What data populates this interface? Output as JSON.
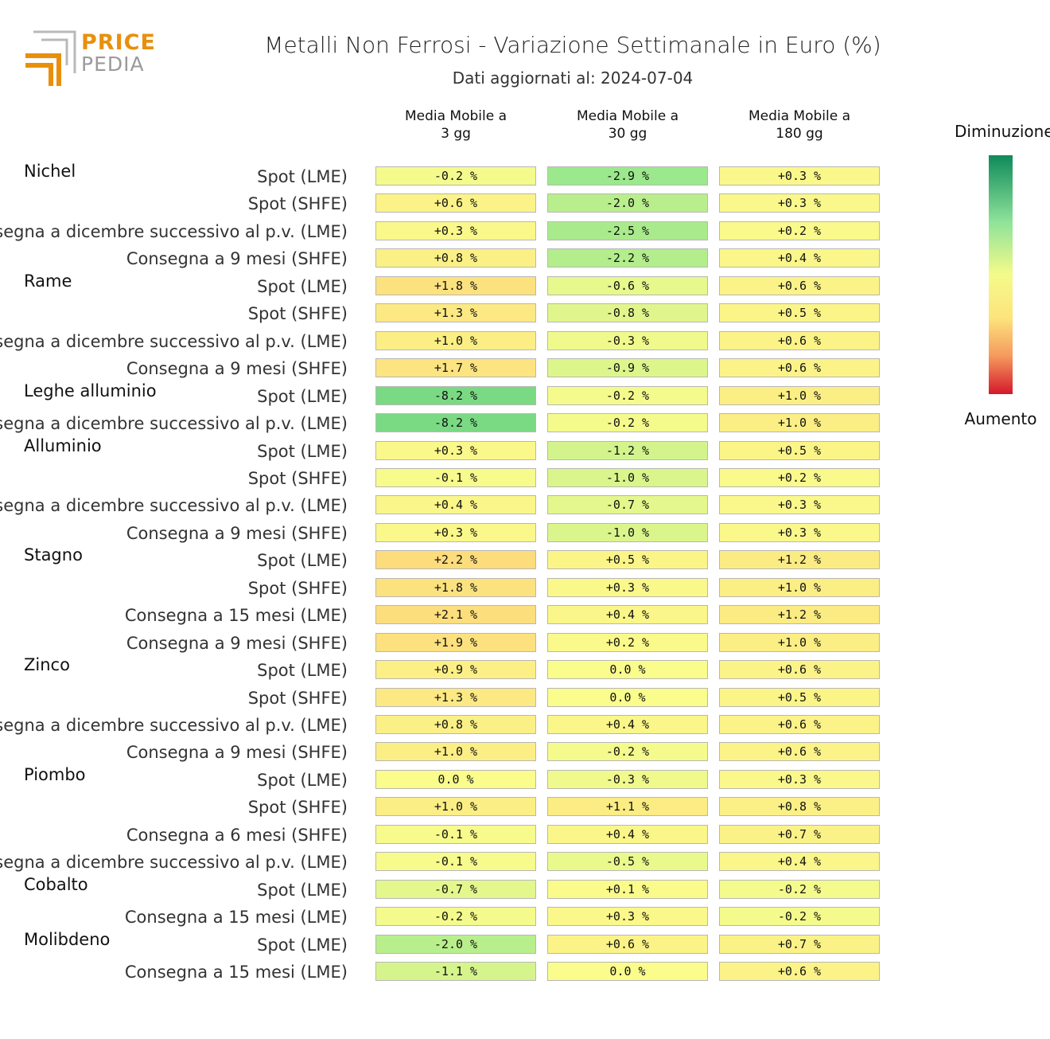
{
  "header": {
    "logo_top": "PRICE",
    "logo_bottom": "PEDIA",
    "title": "Metalli Non Ferrosi - Variazione Settimanale in Euro (%)",
    "subtitle": "Dati aggiornati al: 2024-07-04"
  },
  "columns": [
    "Media Mobile a 3 gg",
    "Media Mobile a 30 gg",
    "Media Mobile a 180 gg"
  ],
  "legend": {
    "top": "Diminuzione",
    "bottom": "Aumento"
  },
  "chart_data": {
    "type": "heatmap",
    "title": "Metalli Non Ferrosi - Variazione Settimanale in Euro (%)",
    "columns": [
      "Media Mobile a 3 gg",
      "Media Mobile a 30 gg",
      "Media Mobile a 180 gg"
    ],
    "rows": [
      {
        "group": "Nichel",
        "label": "Spot (LME)",
        "values": [
          -0.2,
          -2.9,
          0.3
        ],
        "display": [
          "-0.2 %",
          "-2.9 %",
          "+0.3 %"
        ]
      },
      {
        "group": "",
        "label": "Spot (SHFE)",
        "values": [
          0.6,
          -2.0,
          0.3
        ],
        "display": [
          "+0.6 %",
          "-2.0 %",
          "+0.3 %"
        ]
      },
      {
        "group": "",
        "label": "Consegna a dicembre successivo al p.v. (LME)",
        "values": [
          0.3,
          -2.5,
          0.2
        ],
        "display": [
          "+0.3 %",
          "-2.5 %",
          "+0.2 %"
        ]
      },
      {
        "group": "",
        "label": "Consegna a 9 mesi (SHFE)",
        "values": [
          0.8,
          -2.2,
          0.4
        ],
        "display": [
          "+0.8 %",
          "-2.2 %",
          "+0.4 %"
        ]
      },
      {
        "group": "Rame",
        "label": "Spot (LME)",
        "values": [
          1.8,
          -0.6,
          0.6
        ],
        "display": [
          "+1.8 %",
          "-0.6 %",
          "+0.6 %"
        ]
      },
      {
        "group": "",
        "label": "Spot (SHFE)",
        "values": [
          1.3,
          -0.8,
          0.5
        ],
        "display": [
          "+1.3 %",
          "-0.8 %",
          "+0.5 %"
        ]
      },
      {
        "group": "",
        "label": "Consegna a dicembre successivo al p.v. (LME)",
        "values": [
          1.0,
          -0.3,
          0.6
        ],
        "display": [
          "+1.0 %",
          "-0.3 %",
          "+0.6 %"
        ]
      },
      {
        "group": "",
        "label": "Consegna a 9 mesi (SHFE)",
        "values": [
          1.7,
          -0.9,
          0.6
        ],
        "display": [
          "+1.7 %",
          "-0.9 %",
          "+0.6 %"
        ]
      },
      {
        "group": "Leghe alluminio",
        "label": "Spot (LME)",
        "values": [
          -8.2,
          -0.2,
          1.0
        ],
        "display": [
          "-8.2 %",
          "-0.2 %",
          "+1.0 %"
        ]
      },
      {
        "group": "",
        "label": "Consegna a dicembre successivo al p.v. (LME)",
        "values": [
          -8.2,
          -0.2,
          1.0
        ],
        "display": [
          "-8.2 %",
          "-0.2 %",
          "+1.0 %"
        ]
      },
      {
        "group": "Alluminio",
        "label": "Spot (LME)",
        "values": [
          0.3,
          -1.2,
          0.5
        ],
        "display": [
          "+0.3 %",
          "-1.2 %",
          "+0.5 %"
        ]
      },
      {
        "group": "",
        "label": "Spot (SHFE)",
        "values": [
          -0.1,
          -1.0,
          0.2
        ],
        "display": [
          "-0.1 %",
          "-1.0 %",
          "+0.2 %"
        ]
      },
      {
        "group": "",
        "label": "Consegna a dicembre successivo al p.v. (LME)",
        "values": [
          0.4,
          -0.7,
          0.3
        ],
        "display": [
          "+0.4 %",
          "-0.7 %",
          "+0.3 %"
        ]
      },
      {
        "group": "",
        "label": "Consegna a 9 mesi (SHFE)",
        "values": [
          0.3,
          -1.0,
          0.3
        ],
        "display": [
          "+0.3 %",
          "-1.0 %",
          "+0.3 %"
        ]
      },
      {
        "group": "Stagno",
        "label": "Spot (LME)",
        "values": [
          2.2,
          0.5,
          1.2
        ],
        "display": [
          "+2.2 %",
          "+0.5 %",
          "+1.2 %"
        ]
      },
      {
        "group": "",
        "label": "Spot (SHFE)",
        "values": [
          1.8,
          0.3,
          1.0
        ],
        "display": [
          "+1.8 %",
          "+0.3 %",
          "+1.0 %"
        ]
      },
      {
        "group": "",
        "label": "Consegna a 15 mesi (LME)",
        "values": [
          2.1,
          0.4,
          1.2
        ],
        "display": [
          "+2.1 %",
          "+0.4 %",
          "+1.2 %"
        ]
      },
      {
        "group": "",
        "label": "Consegna a 9 mesi (SHFE)",
        "values": [
          1.9,
          0.2,
          1.0
        ],
        "display": [
          "+1.9 %",
          "+0.2 %",
          "+1.0 %"
        ]
      },
      {
        "group": "Zinco",
        "label": "Spot (LME)",
        "values": [
          0.9,
          0.0,
          0.6
        ],
        "display": [
          "+0.9 %",
          "0.0 %",
          "+0.6 %"
        ]
      },
      {
        "group": "",
        "label": "Spot (SHFE)",
        "values": [
          1.3,
          0.0,
          0.5
        ],
        "display": [
          "+1.3 %",
          "0.0 %",
          "+0.5 %"
        ]
      },
      {
        "group": "",
        "label": "Consegna a dicembre successivo al p.v. (LME)",
        "values": [
          0.8,
          0.4,
          0.6
        ],
        "display": [
          "+0.8 %",
          "+0.4 %",
          "+0.6 %"
        ]
      },
      {
        "group": "",
        "label": "Consegna a 9 mesi (SHFE)",
        "values": [
          1.0,
          -0.2,
          0.6
        ],
        "display": [
          "+1.0 %",
          "-0.2 %",
          "+0.6 %"
        ]
      },
      {
        "group": "Piombo",
        "label": "Spot (LME)",
        "values": [
          0.0,
          -0.3,
          0.3
        ],
        "display": [
          "0.0 %",
          "-0.3 %",
          "+0.3 %"
        ]
      },
      {
        "group": "",
        "label": "Spot (SHFE)",
        "values": [
          1.0,
          1.1,
          0.8
        ],
        "display": [
          "+1.0 %",
          "+1.1 %",
          "+0.8 %"
        ]
      },
      {
        "group": "",
        "label": "Consegna a 6 mesi (SHFE)",
        "values": [
          -0.1,
          0.4,
          0.7
        ],
        "display": [
          "-0.1 %",
          "+0.4 %",
          "+0.7 %"
        ]
      },
      {
        "group": "",
        "label": "Consegna a dicembre successivo al p.v. (LME)",
        "values": [
          -0.1,
          -0.5,
          0.4
        ],
        "display": [
          "-0.1 %",
          "-0.5 %",
          "+0.4 %"
        ]
      },
      {
        "group": "Cobalto",
        "label": "Spot (LME)",
        "values": [
          -0.7,
          0.1,
          -0.2
        ],
        "display": [
          "-0.7 %",
          "+0.1 %",
          "-0.2 %"
        ]
      },
      {
        "group": "",
        "label": "Consegna a 15 mesi (LME)",
        "values": [
          -0.2,
          0.3,
          -0.2
        ],
        "display": [
          "-0.2 %",
          "+0.3 %",
          "-0.2 %"
        ]
      },
      {
        "group": "Molibdeno",
        "label": "Spot (LME)",
        "values": [
          -2.0,
          0.6,
          0.7
        ],
        "display": [
          "-2.0 %",
          "+0.6 %",
          "+0.7 %"
        ]
      },
      {
        "group": "",
        "label": "Consegna a 15 mesi (LME)",
        "values": [
          -1.1,
          0.0,
          0.6
        ],
        "display": [
          "-1.1 %",
          "0.0 %",
          "+0.6 %"
        ]
      }
    ]
  }
}
